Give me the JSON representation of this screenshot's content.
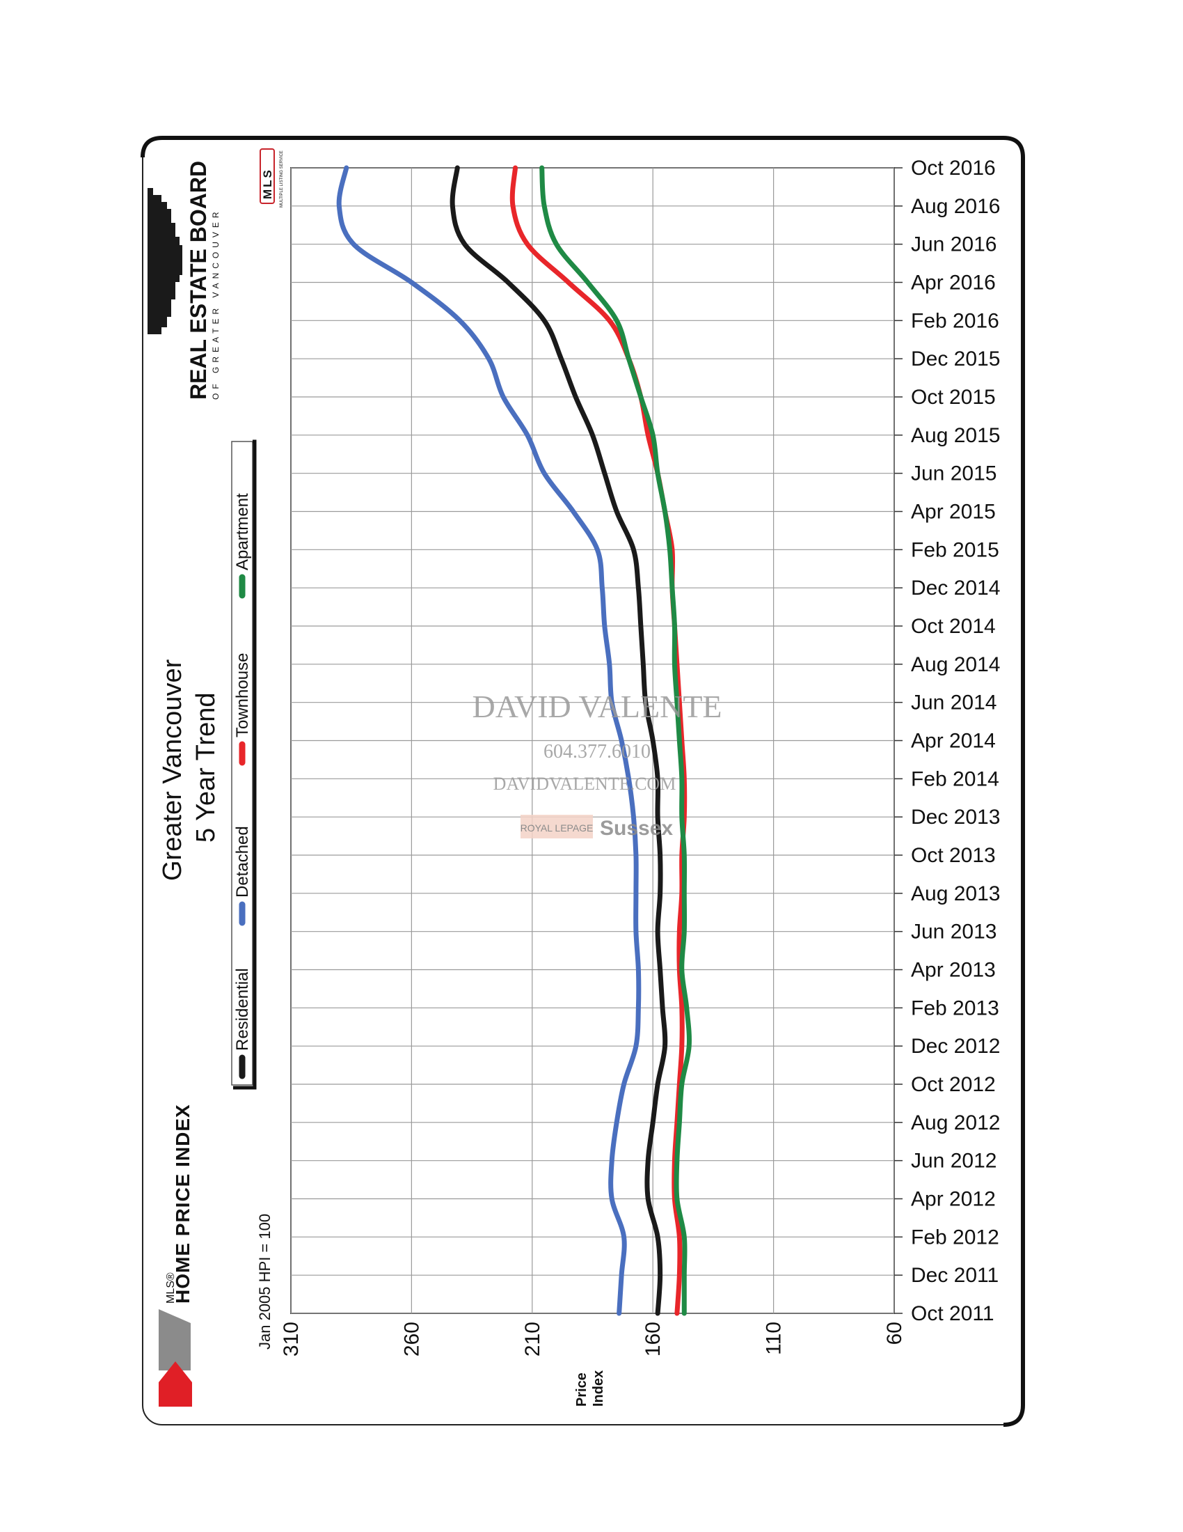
{
  "title": "Greater Vancouver",
  "subtitle": "5 Year Trend",
  "base_note": "Jan 2005 HPI = 100",
  "y_axis_label_line1": "Price",
  "y_axis_label_line2": "Index",
  "brand": {
    "mls_small": "MLS®",
    "hpi": "HOME PRICE INDEX",
    "board_line1": "REAL ESTATE BOARD",
    "board_line2": "OF GREATER VANCOUVER",
    "mls_badge": "MLS",
    "mls_badge_sub": "MULTIPLE LISTING SERVICE"
  },
  "watermark": {
    "name": "DAVID VALENTE",
    "phone": "604.377.6010",
    "site": "DAVIDVALENTE.COM",
    "brokerage_left": "ROYAL LEPAGE",
    "brokerage_right": "Sussex"
  },
  "colors": {
    "Residential": "#1a1a1a",
    "Detached": "#4a6fbf",
    "Townhouse": "#e8262a",
    "Apartment": "#1f8a45",
    "grid": "#9a9a9a"
  },
  "chart_data": {
    "type": "line",
    "title": "Greater Vancouver 5 Year Trend",
    "xlabel": "",
    "ylabel": "Price Index",
    "ylim": [
      60,
      310
    ],
    "yticks": [
      310,
      260,
      210,
      160,
      110,
      60
    ],
    "categories": [
      "Oct 2011",
      "Dec 2011",
      "Feb 2012",
      "Apr 2012",
      "Jun 2012",
      "Aug 2012",
      "Oct 2012",
      "Dec 2012",
      "Feb 2013",
      "Apr 2013",
      "Jun 2013",
      "Aug 2013",
      "Oct 2013",
      "Dec 2013",
      "Feb 2014",
      "Apr 2014",
      "Jun 2014",
      "Aug 2014",
      "Oct 2014",
      "Dec 2014",
      "Feb 2015",
      "Apr 2015",
      "Jun 2015",
      "Aug 2015",
      "Oct 2015",
      "Dec 2015",
      "Feb 2016",
      "Apr 2016",
      "Jun 2016",
      "Aug 2016",
      "Oct 2016"
    ],
    "series": [
      {
        "name": "Residential",
        "values": [
          158,
          157,
          158,
          162,
          162,
          160,
          158,
          155,
          156,
          157,
          158,
          157,
          157,
          158,
          158,
          160,
          163,
          164,
          165,
          166,
          168,
          175,
          180,
          185,
          192,
          198,
          205,
          220,
          238,
          243,
          241
        ]
      },
      {
        "name": "Detached",
        "values": [
          174,
          173,
          172,
          177,
          177,
          175,
          172,
          167,
          166,
          166,
          167,
          167,
          167,
          168,
          170,
          173,
          177,
          178,
          180,
          181,
          183,
          193,
          205,
          212,
          222,
          228,
          240,
          260,
          284,
          290,
          287
        ]
      },
      {
        "name": "Townhouse",
        "values": [
          150,
          149,
          149,
          151,
          151,
          150,
          149,
          148,
          148,
          149,
          149,
          148,
          148,
          147,
          147,
          148,
          149,
          150,
          151,
          152,
          152,
          155,
          158,
          162,
          165,
          170,
          178,
          195,
          212,
          218,
          217
        ]
      },
      {
        "name": "Apartment",
        "values": [
          147,
          147,
          147,
          150,
          150,
          149,
          148,
          145,
          146,
          148,
          147,
          147,
          147,
          148,
          148,
          149,
          150,
          151,
          151,
          152,
          153,
          155,
          158,
          160,
          165,
          170,
          175,
          187,
          200,
          205,
          206
        ]
      }
    ],
    "legend": [
      "Residential",
      "Detached",
      "Townhouse",
      "Apartment"
    ],
    "legend_position": "left",
    "grid": true
  }
}
